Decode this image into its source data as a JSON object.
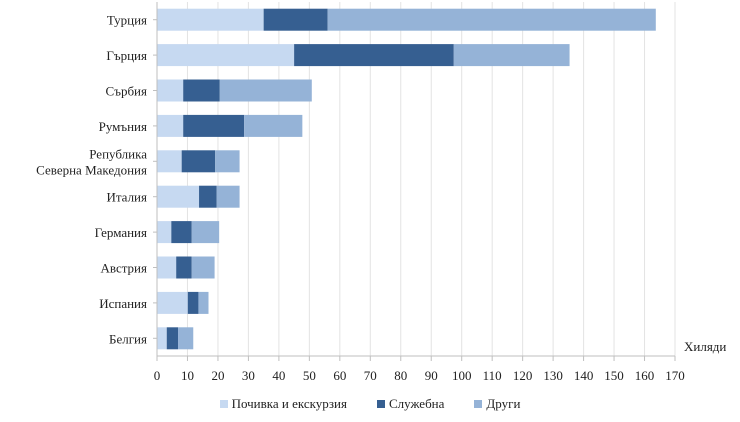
{
  "chart_data": {
    "type": "bar",
    "orientation": "horizontal",
    "stacked": true,
    "title": "",
    "xlabel": "Хиляди",
    "ylabel": "",
    "xlim": [
      0,
      170
    ],
    "x_ticks": [
      0,
      10,
      20,
      30,
      40,
      50,
      60,
      70,
      80,
      90,
      100,
      110,
      120,
      130,
      140,
      150,
      160,
      170
    ],
    "grid": true,
    "legend_position": "bottom",
    "categories": [
      [
        "Турция"
      ],
      [
        "Гърция"
      ],
      [
        "Сърбия"
      ],
      [
        "Румъния"
      ],
      [
        "Република",
        "Северна Македония"
      ],
      [
        "Италия"
      ],
      [
        "Германия"
      ],
      [
        "Австрия"
      ],
      [
        "Испания"
      ],
      [
        "Белгия"
      ]
    ],
    "series": [
      {
        "name": "Почивка и екскурзия",
        "color": "#C6D9F1",
        "values": [
          35,
          45,
          8.6,
          8.6,
          8.1,
          13.8,
          4.7,
          6.3,
          10.1,
          3.2
        ]
      },
      {
        "name": "Служебна",
        "color": "#365F91",
        "values": [
          21,
          52.4,
          12,
          20,
          11,
          5.8,
          6.7,
          5.1,
          3.5,
          3.7
        ]
      },
      {
        "name": "Други",
        "color": "#95B3D7",
        "values": [
          107.7,
          38,
          30.2,
          19.1,
          8,
          7.5,
          9,
          7.5,
          3.3,
          5
        ]
      }
    ]
  }
}
